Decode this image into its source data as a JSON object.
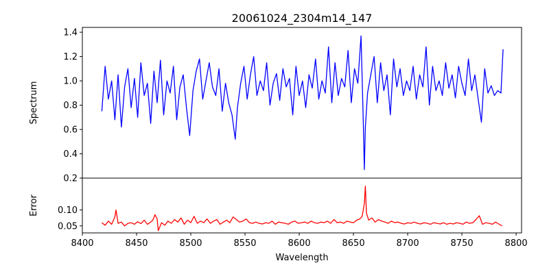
{
  "chart_data": [
    {
      "type": "line",
      "title": "20061024_2304m14_147",
      "xlabel": "",
      "ylabel": "Spectrum",
      "xlim": [
        8400,
        8805
      ],
      "ylim": [
        0.2,
        1.44
      ],
      "yticks": [
        0.2,
        0.4,
        0.6,
        0.8,
        1.0,
        1.2,
        1.4
      ],
      "ytick_labels": [
        "0.2",
        "0.4",
        "0.6",
        "0.8",
        "1.0",
        "1.2",
        "1.4"
      ],
      "series": [
        {
          "color": "#0000ff",
          "x": [
            8418,
            8421,
            8424,
            8427,
            8430,
            8433,
            8436,
            8439,
            8442,
            8445,
            8448,
            8451,
            8454,
            8457,
            8460,
            8463,
            8466,
            8469,
            8472,
            8475,
            8478,
            8481,
            8484,
            8487,
            8490,
            8493,
            8496,
            8499,
            8502,
            8505,
            8508,
            8511,
            8514,
            8517,
            8520,
            8523,
            8526,
            8529,
            8532,
            8535,
            8538,
            8541,
            8543,
            8546,
            8549,
            8552,
            8555,
            8558,
            8561,
            8564,
            8567,
            8570,
            8573,
            8576,
            8579,
            8582,
            8585,
            8588,
            8591,
            8594,
            8597,
            8600,
            8603,
            8606,
            8609,
            8612,
            8615,
            8618,
            8621,
            8624,
            8627,
            8630,
            8633,
            8636,
            8639,
            8642,
            8645,
            8648,
            8651,
            8654,
            8657,
            8659,
            8660,
            8661,
            8663,
            8666,
            8669,
            8672,
            8675,
            8678,
            8681,
            8684,
            8687,
            8690,
            8693,
            8696,
            8699,
            8702,
            8705,
            8708,
            8711,
            8714,
            8717,
            8720,
            8723,
            8726,
            8729,
            8732,
            8735,
            8738,
            8741,
            8744,
            8747,
            8750,
            8753,
            8756,
            8759,
            8762,
            8765,
            8768,
            8771,
            8774,
            8777,
            8780,
            8783,
            8786,
            8788
          ],
          "values": [
            0.75,
            1.12,
            0.85,
            1.0,
            0.68,
            1.05,
            0.62,
            0.95,
            1.1,
            0.78,
            1.02,
            0.7,
            1.15,
            0.88,
            0.98,
            0.65,
            1.08,
            0.82,
            1.17,
            0.72,
            1.0,
            0.9,
            1.12,
            0.68,
            0.95,
            1.05,
            0.78,
            0.55,
            0.92,
            1.08,
            1.18,
            0.85,
            1.0,
            1.15,
            0.95,
            0.88,
            1.1,
            0.75,
            0.98,
            0.82,
            0.72,
            0.52,
            0.78,
            0.98,
            1.12,
            0.85,
            1.05,
            1.2,
            0.88,
            1.0,
            0.92,
            1.15,
            0.8,
            0.98,
            1.06,
            0.84,
            1.1,
            0.95,
            1.02,
            0.72,
            1.12,
            0.88,
            1.0,
            0.78,
            1.05,
            0.94,
            1.18,
            0.85,
            1.0,
            0.9,
            1.28,
            0.82,
            1.15,
            0.88,
            1.02,
            0.95,
            1.25,
            0.82,
            1.1,
            0.98,
            1.37,
            0.68,
            0.27,
            0.62,
            0.9,
            1.05,
            1.2,
            0.82,
            1.15,
            0.92,
            1.05,
            0.72,
            1.18,
            0.95,
            1.1,
            0.88,
            1.0,
            0.92,
            1.12,
            0.85,
            1.05,
            0.95,
            1.28,
            0.8,
            1.12,
            0.92,
            1.0,
            0.88,
            1.15,
            0.94,
            1.05,
            0.86,
            1.12,
            0.98,
            0.88,
            1.18,
            0.92,
            1.05,
            0.85,
            0.66,
            1.1,
            0.9,
            0.96,
            0.88,
            0.92,
            0.9,
            1.26
          ]
        }
      ]
    },
    {
      "type": "line",
      "title": "",
      "xlabel": "Wavelength",
      "ylabel": "Error",
      "xlim": [
        8400,
        8805
      ],
      "ylim": [
        0.028,
        0.2
      ],
      "xticks": [
        8400,
        8450,
        8500,
        8550,
        8600,
        8650,
        8700,
        8750,
        8800
      ],
      "xtick_labels": [
        "8400",
        "8450",
        "8500",
        "8550",
        "8600",
        "8650",
        "8700",
        "8750",
        "8800"
      ],
      "yticks": [
        0.05,
        0.1
      ],
      "ytick_labels": [
        "0.05",
        "0.10"
      ],
      "series": [
        {
          "color": "#ff0000",
          "x": [
            8418,
            8421,
            8424,
            8427,
            8430,
            8431,
            8433,
            8436,
            8439,
            8442,
            8445,
            8448,
            8451,
            8454,
            8457,
            8460,
            8463,
            8465,
            8467,
            8469,
            8470,
            8473,
            8476,
            8479,
            8482,
            8485,
            8488,
            8491,
            8494,
            8497,
            8500,
            8503,
            8506,
            8509,
            8512,
            8515,
            8518,
            8521,
            8524,
            8527,
            8530,
            8533,
            8536,
            8539,
            8542,
            8545,
            8548,
            8551,
            8554,
            8557,
            8560,
            8563,
            8566,
            8569,
            8572,
            8575,
            8578,
            8581,
            8584,
            8587,
            8590,
            8593,
            8596,
            8599,
            8602,
            8605,
            8608,
            8611,
            8614,
            8617,
            8620,
            8623,
            8626,
            8629,
            8632,
            8635,
            8638,
            8641,
            8644,
            8647,
            8650,
            8653,
            8656,
            8658,
            8660,
            8661,
            8662,
            8664,
            8667,
            8670,
            8673,
            8676,
            8679,
            8682,
            8685,
            8688,
            8691,
            8694,
            8697,
            8700,
            8703,
            8706,
            8709,
            8712,
            8715,
            8718,
            8721,
            8724,
            8727,
            8730,
            8733,
            8736,
            8739,
            8742,
            8745,
            8748,
            8751,
            8754,
            8757,
            8760,
            8763,
            8766,
            8769,
            8772,
            8775,
            8778,
            8781,
            8784,
            8787
          ],
          "values": [
            0.06,
            0.052,
            0.065,
            0.055,
            0.078,
            0.1,
            0.058,
            0.062,
            0.05,
            0.058,
            0.06,
            0.055,
            0.063,
            0.057,
            0.068,
            0.055,
            0.062,
            0.068,
            0.085,
            0.072,
            0.035,
            0.06,
            0.052,
            0.065,
            0.058,
            0.07,
            0.062,
            0.075,
            0.055,
            0.068,
            0.06,
            0.08,
            0.058,
            0.065,
            0.06,
            0.072,
            0.058,
            0.065,
            0.07,
            0.055,
            0.062,
            0.068,
            0.06,
            0.078,
            0.07,
            0.062,
            0.065,
            0.072,
            0.06,
            0.058,
            0.062,
            0.058,
            0.056,
            0.06,
            0.058,
            0.065,
            0.055,
            0.062,
            0.06,
            0.058,
            0.055,
            0.062,
            0.065,
            0.058,
            0.06,
            0.062,
            0.058,
            0.065,
            0.06,
            0.058,
            0.062,
            0.06,
            0.065,
            0.058,
            0.07,
            0.06,
            0.062,
            0.058,
            0.065,
            0.062,
            0.06,
            0.068,
            0.072,
            0.08,
            0.12,
            0.175,
            0.09,
            0.068,
            0.075,
            0.062,
            0.07,
            0.065,
            0.062,
            0.058,
            0.065,
            0.06,
            0.062,
            0.058,
            0.056,
            0.06,
            0.058,
            0.062,
            0.058,
            0.056,
            0.06,
            0.058,
            0.055,
            0.06,
            0.058,
            0.056,
            0.06,
            0.055,
            0.058,
            0.056,
            0.06,
            0.058,
            0.055,
            0.062,
            0.058,
            0.06,
            0.07,
            0.082,
            0.055,
            0.06,
            0.058,
            0.055,
            0.062,
            0.056,
            0.05
          ]
        }
      ]
    }
  ]
}
